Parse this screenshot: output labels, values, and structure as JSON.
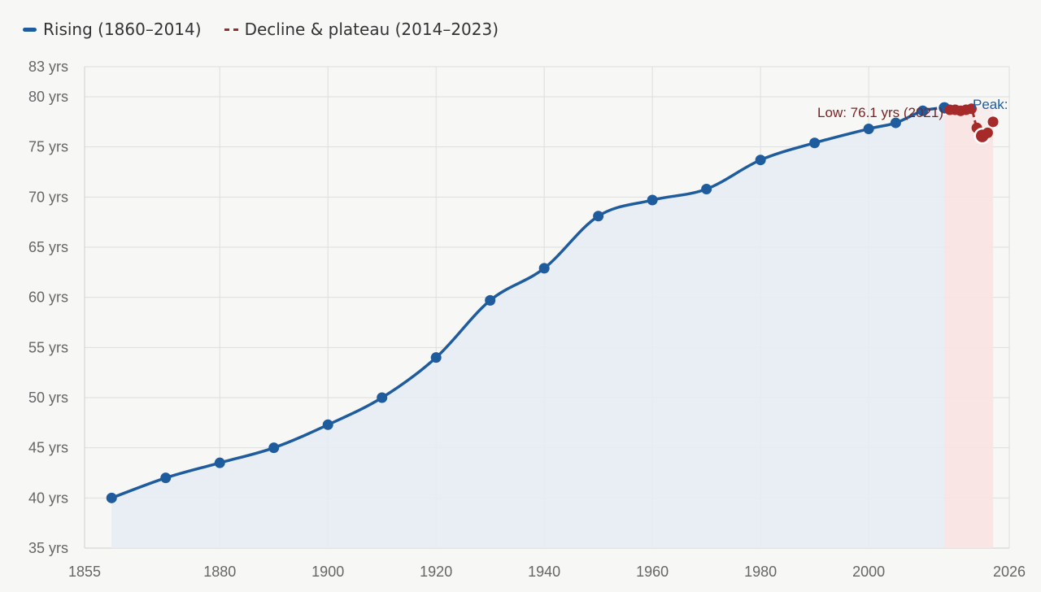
{
  "legend": {
    "rising": "Rising (1860–2014)",
    "decline": "Decline & plateau (2014–2023)"
  },
  "colors": {
    "rising": "#1f5c9e",
    "decline": "#a62a2a",
    "rising_fill": "#e6ecf4",
    "decline_fill": "#f7e4e3",
    "grid": "#dedede",
    "background": "#f7f7f6"
  },
  "annotations": {
    "low_label": "Low: 76.1 yrs (2021)",
    "peak_label": "Peak:"
  },
  "chart_data": {
    "type": "line",
    "title": "",
    "xlabel": "",
    "ylabel": "",
    "xlim": [
      1855,
      2026
    ],
    "ylim": [
      35,
      83
    ],
    "x_ticks": [
      1855,
      1880,
      1900,
      1920,
      1940,
      1960,
      1980,
      2000,
      2026
    ],
    "y_ticks": [
      {
        "value": 35,
        "label": "35 yrs"
      },
      {
        "value": 40,
        "label": "40 yrs"
      },
      {
        "value": 45,
        "label": "45 yrs"
      },
      {
        "value": 50,
        "label": "50 yrs"
      },
      {
        "value": 55,
        "label": "55 yrs"
      },
      {
        "value": 60,
        "label": "60 yrs"
      },
      {
        "value": 65,
        "label": "65 yrs"
      },
      {
        "value": 70,
        "label": "70 yrs"
      },
      {
        "value": 75,
        "label": "75 yrs"
      },
      {
        "value": 80,
        "label": "80 yrs"
      },
      {
        "value": 83,
        "label": "83 yrs"
      }
    ],
    "grid": true,
    "legend_position": "top-left",
    "series": [
      {
        "name": "Rising (1860–2014)",
        "x": [
          1860,
          1870,
          1880,
          1890,
          1900,
          1910,
          1920,
          1930,
          1940,
          1950,
          1960,
          1970,
          1980,
          1990,
          2000,
          2005,
          2010,
          2014
        ],
        "y": [
          40.0,
          42.0,
          43.5,
          45.0,
          47.3,
          50.0,
          54.0,
          59.7,
          62.9,
          68.1,
          69.7,
          70.8,
          73.7,
          75.4,
          76.8,
          77.4,
          78.6,
          78.9
        ]
      },
      {
        "name": "Decline & plateau (2014–2023)",
        "x": [
          2014,
          2015,
          2016,
          2017,
          2018,
          2019,
          2020,
          2021,
          2022,
          2023
        ],
        "y": [
          78.9,
          78.7,
          78.7,
          78.6,
          78.7,
          78.8,
          76.9,
          76.1,
          76.4,
          77.5
        ]
      }
    ],
    "highlights": {
      "peak": {
        "x": 2014,
        "y": 78.9
      },
      "low": {
        "x": 2021,
        "y": 76.1
      }
    }
  }
}
